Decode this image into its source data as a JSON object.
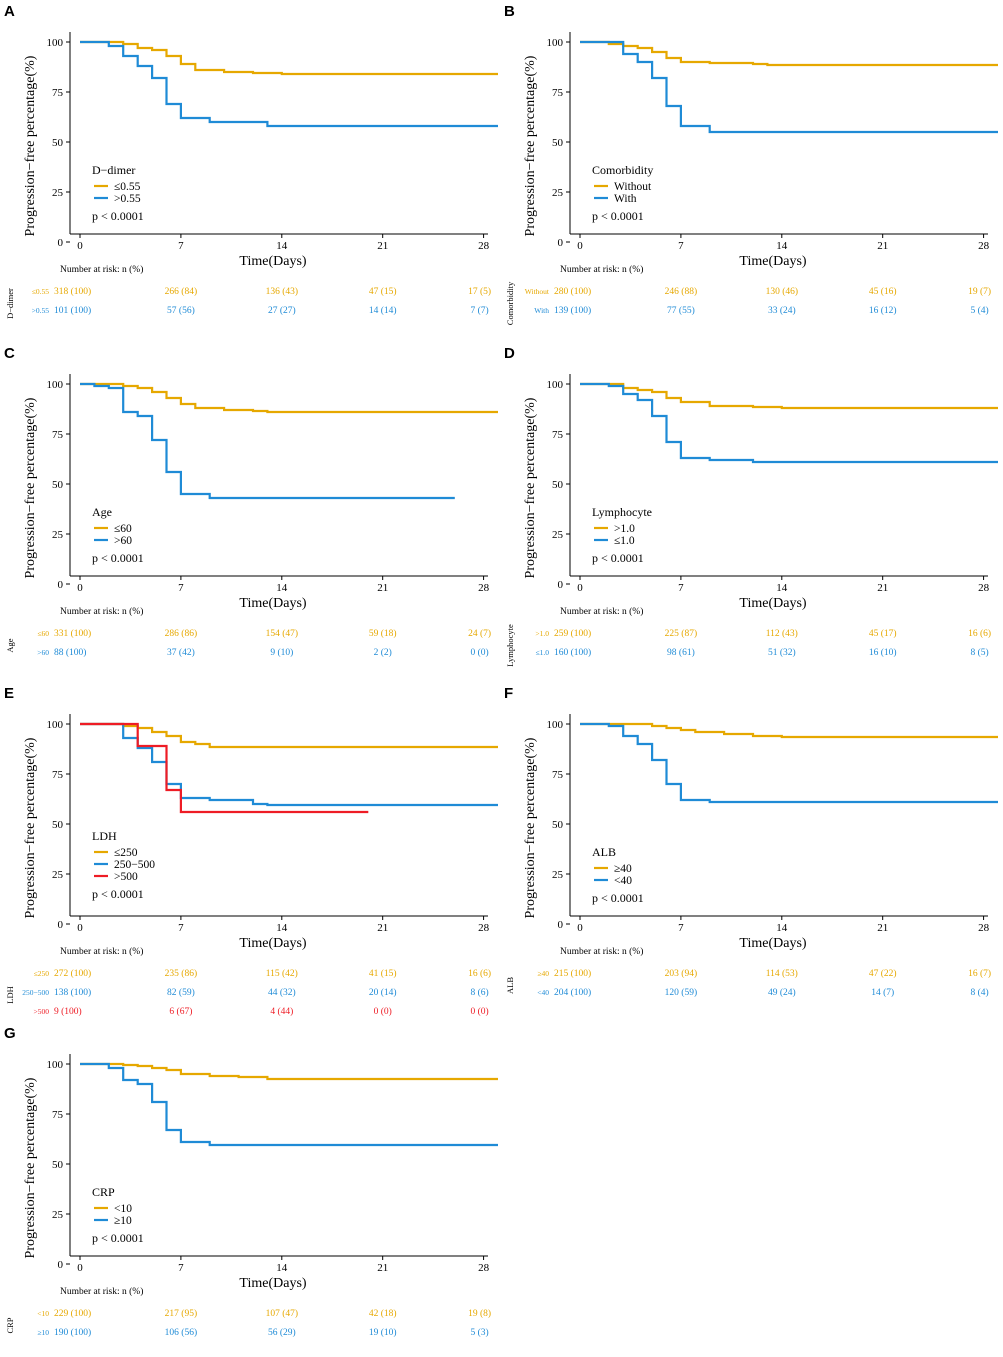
{
  "figure": {
    "y_axis_label": "Progression−free percentage(%)",
    "x_axis_label": "Time(Days)",
    "risk_table_title": "Number at risk: n (%)",
    "colors": {
      "orange": "#E6A800",
      "blue": "#1F8BD6",
      "red": "#EE1C25"
    }
  },
  "chart_data": [
    {
      "letter": "A",
      "type": "line",
      "step": true,
      "xlim": [
        0,
        29
      ],
      "ylim": [
        0,
        100
      ],
      "x_ticks": [
        0,
        7,
        14,
        21,
        28
      ],
      "y_ticks": [
        0,
        25,
        50,
        75,
        100
      ],
      "legend_title": "D−dimer",
      "p_value": "p < 0.0001",
      "table_label": "D−dimer",
      "series": [
        {
          "name": "≤0.55",
          "short": "≤0.55",
          "color": "#E6A800",
          "points": [
            [
              0,
              100
            ],
            [
              3,
              99
            ],
            [
              4,
              97
            ],
            [
              5,
              96
            ],
            [
              6,
              93
            ],
            [
              7,
              89
            ],
            [
              8,
              86
            ],
            [
              10,
              85
            ],
            [
              12,
              84.5
            ],
            [
              14,
              84
            ],
            [
              29,
              84
            ]
          ],
          "end": 29,
          "risk": [
            "318 (100)",
            "266 (84)",
            "136 (43)",
            "47 (15)",
            "17 (5)"
          ]
        },
        {
          "name": ">0.55",
          "short": ">0.55",
          "color": "#1F8BD6",
          "points": [
            [
              0,
              100
            ],
            [
              2,
              98
            ],
            [
              3,
              93
            ],
            [
              4,
              88
            ],
            [
              5,
              82
            ],
            [
              6,
              69
            ],
            [
              7,
              62
            ],
            [
              9,
              60
            ],
            [
              13,
              58
            ],
            [
              29,
              58
            ]
          ],
          "end": 29,
          "risk": [
            "101 (100)",
            "57 (56)",
            "27 (27)",
            "14 (14)",
            "7 (7)"
          ]
        }
      ]
    },
    {
      "letter": "B",
      "type": "line",
      "step": true,
      "xlim": [
        0,
        29
      ],
      "ylim": [
        0,
        100
      ],
      "x_ticks": [
        0,
        7,
        14,
        21,
        28
      ],
      "y_ticks": [
        0,
        25,
        50,
        75,
        100
      ],
      "legend_title": "Comorbidity",
      "p_value": "p < 0.0001",
      "table_label": "Comorbidity",
      "series": [
        {
          "name": "Without",
          "short": "Without",
          "color": "#E6A800",
          "points": [
            [
              0,
              100
            ],
            [
              2,
              99
            ],
            [
              3,
              98
            ],
            [
              4,
              97
            ],
            [
              5,
              95
            ],
            [
              6,
              92
            ],
            [
              7,
              90
            ],
            [
              9,
              89.5
            ],
            [
              12,
              89
            ],
            [
              13,
              88.5
            ],
            [
              29,
              88.5
            ]
          ],
          "end": 29,
          "risk": [
            "280 (100)",
            "246 (88)",
            "130 (46)",
            "45 (16)",
            "19 (7)"
          ]
        },
        {
          "name": "With",
          "short": "With",
          "color": "#1F8BD6",
          "points": [
            [
              0,
              100
            ],
            [
              3,
              94
            ],
            [
              4,
              90
            ],
            [
              5,
              82
            ],
            [
              6,
              68
            ],
            [
              7,
              58
            ],
            [
              9,
              55
            ],
            [
              29,
              55
            ]
          ],
          "end": 29,
          "risk": [
            "139 (100)",
            "77 (55)",
            "33 (24)",
            "16 (12)",
            "5 (4)"
          ]
        }
      ]
    },
    {
      "letter": "C",
      "type": "line",
      "step": true,
      "xlim": [
        0,
        29
      ],
      "ylim": [
        0,
        100
      ],
      "x_ticks": [
        0,
        7,
        14,
        21,
        28
      ],
      "y_ticks": [
        0,
        25,
        50,
        75,
        100
      ],
      "legend_title": "Age",
      "p_value": "p < 0.0001",
      "table_label": "Age",
      "series": [
        {
          "name": "≤60",
          "short": "≤60",
          "color": "#E6A800",
          "points": [
            [
              0,
              100
            ],
            [
              2,
              100
            ],
            [
              3,
              99
            ],
            [
              4,
              98
            ],
            [
              5,
              96
            ],
            [
              6,
              93
            ],
            [
              7,
              90
            ],
            [
              8,
              88
            ],
            [
              10,
              87
            ],
            [
              12,
              86.5
            ],
            [
              13,
              86
            ],
            [
              29,
              86
            ]
          ],
          "end": 29,
          "risk": [
            "331 (100)",
            "286 (86)",
            "154 (47)",
            "59 (18)",
            "24 (7)"
          ]
        },
        {
          "name": ">60",
          "short": ">60",
          "color": "#1F8BD6",
          "points": [
            [
              0,
              100
            ],
            [
              1,
              99
            ],
            [
              2,
              98
            ],
            [
              3,
              86
            ],
            [
              4,
              84
            ],
            [
              5,
              72
            ],
            [
              6,
              56
            ],
            [
              7,
              45
            ],
            [
              9,
              43
            ],
            [
              26,
              43
            ]
          ],
          "end": 26,
          "risk": [
            "88 (100)",
            "37 (42)",
            "9 (10)",
            "2 (2)",
            "0 (0)"
          ]
        }
      ]
    },
    {
      "letter": "D",
      "type": "line",
      "step": true,
      "xlim": [
        0,
        29
      ],
      "ylim": [
        0,
        100
      ],
      "x_ticks": [
        0,
        7,
        14,
        21,
        28
      ],
      "y_ticks": [
        0,
        25,
        50,
        75,
        100
      ],
      "legend_title": "Lymphocyte",
      "p_value": "p < 0.0001",
      "table_label": "Lymphocyte",
      "series": [
        {
          "name": ">1.0",
          "short": ">1.0",
          "color": "#E6A800",
          "points": [
            [
              0,
              100
            ],
            [
              2,
              100
            ],
            [
              3,
              98
            ],
            [
              4,
              97
            ],
            [
              5,
              96
            ],
            [
              6,
              93
            ],
            [
              7,
              91
            ],
            [
              9,
              89
            ],
            [
              12,
              88.5
            ],
            [
              14,
              88
            ],
            [
              29,
              88
            ]
          ],
          "end": 29,
          "risk": [
            "259 (100)",
            "225 (87)",
            "112 (43)",
            "45 (17)",
            "16 (6)"
          ]
        },
        {
          "name": "≤1.0",
          "short": "≤1.0",
          "color": "#1F8BD6",
          "points": [
            [
              0,
              100
            ],
            [
              2,
              99
            ],
            [
              3,
              95
            ],
            [
              4,
              92
            ],
            [
              5,
              84
            ],
            [
              6,
              71
            ],
            [
              7,
              63
            ],
            [
              9,
              62
            ],
            [
              12,
              61
            ],
            [
              29,
              61
            ]
          ],
          "end": 29,
          "risk": [
            "160 (100)",
            "98 (61)",
            "51 (32)",
            "16 (10)",
            "8 (5)"
          ]
        }
      ]
    },
    {
      "letter": "E",
      "type": "line",
      "step": true,
      "xlim": [
        0,
        29
      ],
      "ylim": [
        0,
        100
      ],
      "x_ticks": [
        0,
        7,
        14,
        21,
        28
      ],
      "y_ticks": [
        0,
        25,
        50,
        75,
        100
      ],
      "legend_title": "LDH",
      "p_value": "p < 0.0001",
      "table_label": "LDH",
      "series": [
        {
          "name": "≤250",
          "short": "≤250",
          "color": "#E6A800",
          "points": [
            [
              0,
              100
            ],
            [
              3,
              99
            ],
            [
              4,
              98
            ],
            [
              5,
              96
            ],
            [
              6,
              94
            ],
            [
              7,
              91
            ],
            [
              8,
              90
            ],
            [
              9,
              88.5
            ],
            [
              29,
              88.5
            ]
          ],
          "end": 29,
          "risk": [
            "272 (100)",
            "235 (86)",
            "115 (42)",
            "41 (15)",
            "16 (6)"
          ]
        },
        {
          "name": "250−500",
          "short": "250−500",
          "color": "#1F8BD6",
          "points": [
            [
              0,
              100
            ],
            [
              3,
              93
            ],
            [
              4,
              88
            ],
            [
              5,
              81
            ],
            [
              6,
              70
            ],
            [
              7,
              63
            ],
            [
              9,
              62
            ],
            [
              12,
              60
            ],
            [
              13,
              59.5
            ],
            [
              29,
              59.5
            ]
          ],
          "end": 29,
          "risk": [
            "138 (100)",
            "82 (59)",
            "44 (32)",
            "20 (14)",
            "8 (6)"
          ]
        },
        {
          "name": ">500",
          "short": ">500",
          "color": "#EE1C25",
          "points": [
            [
              0,
              100
            ],
            [
              4,
              89
            ],
            [
              6,
              67
            ],
            [
              7,
              56
            ],
            [
              20,
              56
            ]
          ],
          "end": 20,
          "risk": [
            "9 (100)",
            "6 (67)",
            "4 (44)",
            "0 (0)",
            "0 (0)"
          ]
        }
      ]
    },
    {
      "letter": "F",
      "type": "line",
      "step": true,
      "xlim": [
        0,
        29
      ],
      "ylim": [
        0,
        100
      ],
      "x_ticks": [
        0,
        7,
        14,
        21,
        28
      ],
      "y_ticks": [
        0,
        25,
        50,
        75,
        100
      ],
      "legend_title": "ALB",
      "p_value": "p < 0.0001",
      "table_label": "ALB",
      "series": [
        {
          "name": "≥40",
          "short": "≥40",
          "color": "#E6A800",
          "points": [
            [
              0,
              100
            ],
            [
              5,
              99
            ],
            [
              6,
              98
            ],
            [
              7,
              97
            ],
            [
              8,
              96
            ],
            [
              10,
              95
            ],
            [
              12,
              94
            ],
            [
              14,
              93.5
            ],
            [
              29,
              93.5
            ]
          ],
          "end": 29,
          "risk": [
            "215 (100)",
            "203 (94)",
            "114 (53)",
            "47 (22)",
            "16 (7)"
          ]
        },
        {
          "name": "<40",
          "short": "<40",
          "color": "#1F8BD6",
          "points": [
            [
              0,
              100
            ],
            [
              2,
              99
            ],
            [
              3,
              94
            ],
            [
              4,
              90
            ],
            [
              5,
              82
            ],
            [
              6,
              70
            ],
            [
              7,
              62
            ],
            [
              9,
              61
            ],
            [
              29,
              61
            ]
          ],
          "end": 29,
          "risk": [
            "204 (100)",
            "120 (59)",
            "49 (24)",
            "14 (7)",
            "8 (4)"
          ]
        }
      ]
    },
    {
      "letter": "G",
      "type": "line",
      "step": true,
      "xlim": [
        0,
        29
      ],
      "ylim": [
        0,
        100
      ],
      "x_ticks": [
        0,
        7,
        14,
        21,
        28
      ],
      "y_ticks": [
        0,
        25,
        50,
        75,
        100
      ],
      "legend_title": "CRP",
      "p_value": "p < 0.0001",
      "table_label": "CRP",
      "series": [
        {
          "name": "<10",
          "short": "<10",
          "color": "#E6A800",
          "points": [
            [
              0,
              100
            ],
            [
              3,
              99.5
            ],
            [
              4,
              99
            ],
            [
              5,
              98
            ],
            [
              6,
              97
            ],
            [
              7,
              95
            ],
            [
              9,
              94
            ],
            [
              11,
              93.5
            ],
            [
              13,
              92.5
            ],
            [
              29,
              92.5
            ]
          ],
          "end": 29,
          "risk": [
            "229 (100)",
            "217 (95)",
            "107 (47)",
            "42 (18)",
            "19 (8)"
          ]
        },
        {
          "name": "≥10",
          "short": "≥10",
          "color": "#1F8BD6",
          "points": [
            [
              0,
              100
            ],
            [
              2,
              98
            ],
            [
              3,
              92
            ],
            [
              4,
              90
            ],
            [
              5,
              81
            ],
            [
              6,
              67
            ],
            [
              7,
              61
            ],
            [
              9,
              59.5
            ],
            [
              29,
              59.5
            ]
          ],
          "end": 29,
          "risk": [
            "190 (100)",
            "106 (56)",
            "56 (29)",
            "19 (10)",
            "5 (3)"
          ]
        }
      ]
    }
  ]
}
